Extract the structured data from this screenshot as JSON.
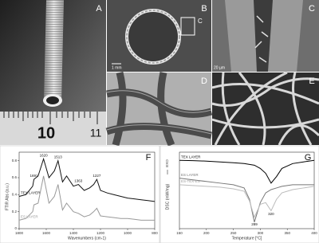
{
  "panels": [
    "A",
    "B",
    "C",
    "D",
    "E"
  ],
  "ruler_labels": [
    "10",
    "11"
  ],
  "scale_bars": [
    "1 mm",
    "20 µm"
  ],
  "inset_label": "C",
  "chart_data": [
    {
      "type": "line",
      "letter": "F",
      "xlabel": "Wavenumbers (cm-1)",
      "ylabel": "FTIR Abs (a.u.)",
      "x": [
        1800,
        1750,
        1700,
        1691,
        1660,
        1620,
        1580,
        1540,
        1513,
        1480,
        1450,
        1400,
        1363,
        1320,
        1280,
        1250,
        1227,
        1200,
        1150,
        1100,
        1050,
        1000,
        950,
        900,
        850,
        800
      ],
      "series": [
        {
          "name": "TEX LAYER",
          "color": "#111111",
          "values": [
            0.38,
            0.4,
            0.5,
            0.58,
            0.62,
            0.82,
            0.6,
            0.68,
            0.8,
            0.55,
            0.62,
            0.5,
            0.52,
            0.45,
            0.48,
            0.52,
            0.58,
            0.45,
            0.42,
            0.4,
            0.38,
            0.36,
            0.35,
            0.34,
            0.33,
            0.32
          ]
        },
        {
          "name": "ES LAYER",
          "color": "#999999",
          "values": [
            0.1,
            0.12,
            0.2,
            0.28,
            0.3,
            0.62,
            0.3,
            0.38,
            0.52,
            0.22,
            0.3,
            0.2,
            0.18,
            0.14,
            0.16,
            0.2,
            0.24,
            0.15,
            0.14,
            0.13,
            0.12,
            0.12,
            0.11,
            0.1,
            0.1,
            0.1
          ]
        }
      ],
      "annotations": [
        {
          "label": "1620",
          "x": 1620,
          "y": 0.86
        },
        {
          "label": "1513",
          "x": 1513,
          "y": 0.84
        },
        {
          "label": "1691",
          "x": 1691,
          "y": 0.62
        },
        {
          "label": "1363",
          "x": 1363,
          "y": 0.56
        },
        {
          "label": "1227",
          "x": 1227,
          "y": 0.62
        }
      ],
      "xlim": [
        1800,
        800
      ],
      "xticks": [
        1800,
        1600,
        1400,
        1200,
        1000,
        800
      ],
      "ylim": [
        0,
        0.9
      ],
      "yticks": [
        0,
        0.2,
        0.4,
        0.6,
        0.8
      ]
    },
    {
      "type": "line",
      "letter": "G",
      "xlabel": "Temperature [°C]",
      "ylabel": "DSC (mW/mg)",
      "exo_label": "EXO",
      "x": [
        150,
        175,
        200,
        225,
        250,
        270,
        280,
        289,
        300,
        310,
        320,
        330,
        340,
        360,
        380,
        400
      ],
      "series": [
        {
          "name": "TEX LAYER",
          "color": "#000000",
          "values": [
            5.0,
            4.98,
            4.95,
            4.9,
            4.85,
            4.8,
            4.75,
            4.7,
            4.5,
            4.2,
            3.6,
            4.0,
            4.5,
            4.8,
            4.9,
            5.0
          ]
        },
        {
          "name": "ES LAYER",
          "color": "#777777",
          "values": [
            3.9,
            3.8,
            3.7,
            3.6,
            3.5,
            3.3,
            2.6,
            1.2,
            2.4,
            3.0,
            3.2,
            3.3,
            3.4,
            3.5,
            3.5,
            3.5
          ]
        },
        {
          "name": "ES-TEX-ES",
          "color": "#bbbbbb",
          "values": [
            3.5,
            3.45,
            3.4,
            3.35,
            3.25,
            3.1,
            2.5,
            1.5,
            2.3,
            2.4,
            1.9,
            2.6,
            3.0,
            3.2,
            3.3,
            3.4
          ]
        }
      ],
      "annotations": [
        {
          "label": "289",
          "x": 289,
          "y": 1.05
        },
        {
          "label": "320",
          "x": 320,
          "y": 1.7
        }
      ],
      "xlim": [
        150,
        400
      ],
      "xticks": [
        150,
        200,
        250,
        300,
        350,
        400
      ],
      "ylim": [
        0.8,
        5.5
      ]
    }
  ]
}
